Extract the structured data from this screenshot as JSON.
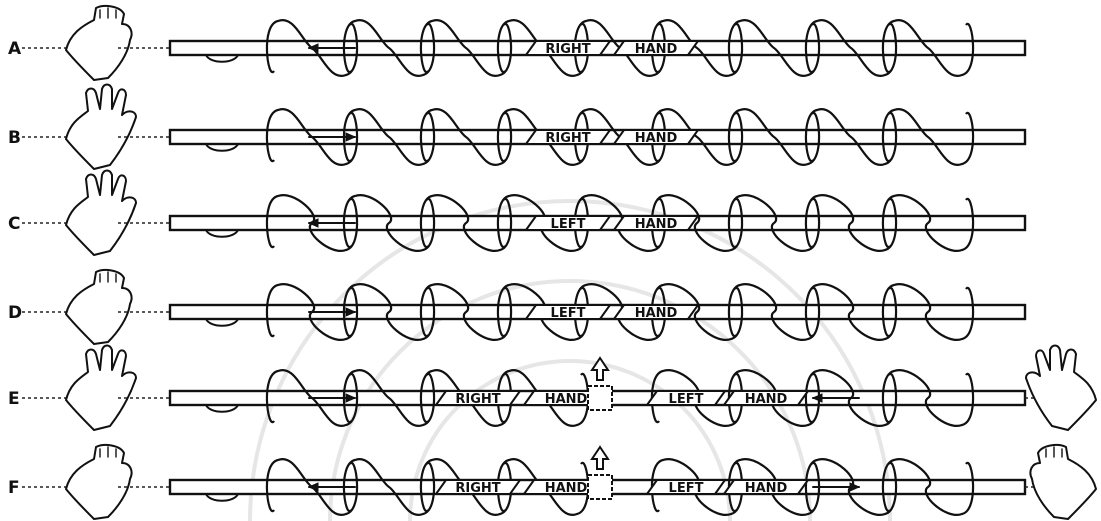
{
  "colors": {
    "ink": "#111111",
    "paper": "#ffffff",
    "watermark": "#e6e6e6"
  },
  "rows": [
    {
      "id": "a",
      "letter": "A",
      "hand_type": "right",
      "labels": [
        "RIGHT",
        "HAND"
      ],
      "rotation": "left",
      "secondary": null,
      "has_right_hand": false,
      "has_split": false
    },
    {
      "id": "b",
      "letter": "B",
      "hand_type": "right",
      "labels": [
        "RIGHT",
        "HAND"
      ],
      "rotation": "right",
      "secondary": null,
      "has_right_hand": false,
      "has_split": false
    },
    {
      "id": "c",
      "letter": "C",
      "hand_type": "left",
      "labels": [
        "LEFT",
        "HAND"
      ],
      "rotation": "left",
      "secondary": null,
      "has_right_hand": false,
      "has_split": false
    },
    {
      "id": "d",
      "letter": "D",
      "hand_type": "left",
      "labels": [
        "LEFT",
        "HAND"
      ],
      "rotation": "right",
      "secondary": null,
      "has_right_hand": false,
      "has_split": false
    },
    {
      "id": "e",
      "letter": "E",
      "hand_type": "right",
      "labels": [
        "RIGHT",
        "HAND"
      ],
      "rotation": "right",
      "secondary": {
        "labels": [
          "LEFT",
          "HAND"
        ],
        "rotation": "left"
      },
      "has_right_hand": true,
      "has_split": true
    },
    {
      "id": "f",
      "letter": "F",
      "hand_type": "right",
      "labels": [
        "RIGHT",
        "HAND"
      ],
      "rotation": "left",
      "secondary": {
        "labels": [
          "LEFT",
          "HAND"
        ],
        "rotation": "right"
      },
      "has_right_hand": true,
      "has_split": true
    }
  ]
}
